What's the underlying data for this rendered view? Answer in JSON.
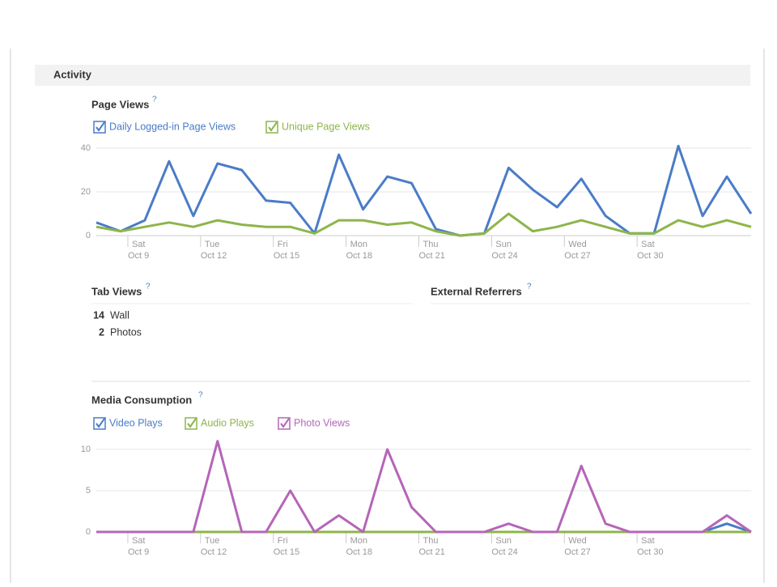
{
  "section": {
    "title": "Activity"
  },
  "page_views": {
    "type": "line",
    "title": "Page Views",
    "help": "?",
    "ylim": [
      0,
      40
    ],
    "yticks": [
      0,
      20,
      40
    ],
    "xticks": [
      {
        "day": "Sat",
        "date": "Oct 9"
      },
      {
        "day": "Tue",
        "date": "Oct 12"
      },
      {
        "day": "Fri",
        "date": "Oct 15"
      },
      {
        "day": "Mon",
        "date": "Oct 18"
      },
      {
        "day": "Thu",
        "date": "Oct 21"
      },
      {
        "day": "Sun",
        "date": "Oct 24"
      },
      {
        "day": "Wed",
        "date": "Oct 27"
      },
      {
        "day": "Sat",
        "date": "Oct 30"
      }
    ],
    "series": [
      {
        "name": "Daily Logged-in Page Views",
        "color": "#4a7cc7",
        "values": [
          6,
          2,
          7,
          34,
          9,
          33,
          30,
          16,
          15,
          1,
          37,
          12,
          27,
          24,
          3,
          0,
          1,
          31,
          21,
          13,
          26,
          9,
          1,
          1,
          41,
          9,
          27,
          10
        ]
      },
      {
        "name": "Unique Page Views",
        "color": "#8db54a",
        "values": [
          4,
          2,
          4,
          6,
          4,
          7,
          5,
          4,
          4,
          1,
          7,
          7,
          5,
          6,
          2,
          0,
          1,
          10,
          2,
          4,
          7,
          4,
          1,
          1,
          7,
          4,
          7,
          4
        ]
      }
    ]
  },
  "tab_views": {
    "title": "Tab Views",
    "help": "?",
    "rows": [
      {
        "count": 14,
        "label": "Wall"
      },
      {
        "count": 2,
        "label": "Photos"
      }
    ]
  },
  "external_referrers": {
    "title": "External Referrers",
    "help": "?"
  },
  "media": {
    "type": "line",
    "title": "Media Consumption",
    "help": "?",
    "ylim": [
      0,
      10
    ],
    "yticks": [
      0,
      5,
      10
    ],
    "xticks": [
      {
        "day": "Sat",
        "date": "Oct 9"
      },
      {
        "day": "Tue",
        "date": "Oct 12"
      },
      {
        "day": "Fri",
        "date": "Oct 15"
      },
      {
        "day": "Mon",
        "date": "Oct 18"
      },
      {
        "day": "Thu",
        "date": "Oct 21"
      },
      {
        "day": "Sun",
        "date": "Oct 24"
      },
      {
        "day": "Wed",
        "date": "Oct 27"
      },
      {
        "day": "Sat",
        "date": "Oct 30"
      }
    ],
    "series": [
      {
        "name": "Video Plays",
        "color": "#4a7cc7",
        "values": [
          0,
          0,
          0,
          0,
          0,
          0,
          0,
          0,
          0,
          0,
          0,
          0,
          0,
          0,
          0,
          0,
          0,
          0,
          0,
          0,
          0,
          0,
          0,
          0,
          0,
          0,
          1,
          0
        ]
      },
      {
        "name": "Audio Plays",
        "color": "#8db54a",
        "values": [
          0,
          0,
          0,
          0,
          0,
          0,
          0,
          0,
          0,
          0,
          0,
          0,
          0,
          0,
          0,
          0,
          0,
          0,
          0,
          0,
          0,
          0,
          0,
          0,
          0,
          0,
          0,
          0
        ]
      },
      {
        "name": "Photo Views",
        "color": "#b565b8",
        "values": [
          0,
          0,
          0,
          0,
          0,
          11,
          0,
          0,
          5,
          0,
          2,
          0,
          10,
          3,
          0,
          0,
          0,
          1,
          0,
          0,
          8,
          1,
          0,
          0,
          0,
          0,
          2,
          0
        ]
      }
    ]
  }
}
